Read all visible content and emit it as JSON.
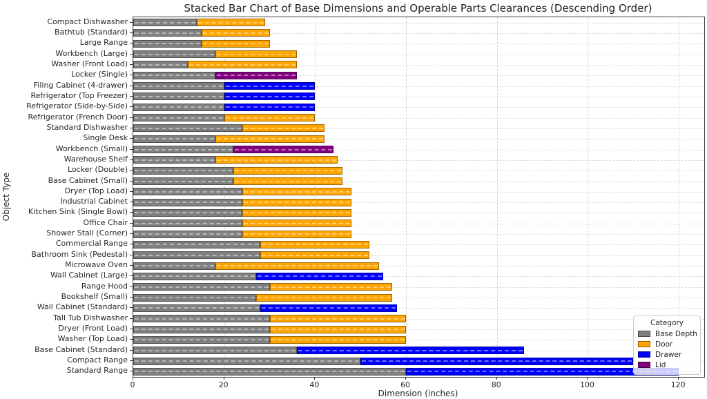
{
  "chart_data": {
    "type": "bar",
    "orientation": "horizontal",
    "stacked": true,
    "title": "Stacked Bar Chart of Base Dimensions and Operable Parts Clearances (Descending Order)",
    "xlabel": "Dimension (inches)",
    "ylabel": "Object Type",
    "xlim": [
      0,
      125.6
    ],
    "x_ticks": [
      0,
      20,
      40,
      60,
      80,
      100,
      120
    ],
    "grid": "both-axes dashed light gray",
    "legend": {
      "title": "Category",
      "position": "lower right",
      "entries": [
        {
          "label": "Base Depth",
          "color_key": "base"
        },
        {
          "label": "Door",
          "color_key": "door"
        },
        {
          "label": "Drawer",
          "color_key": "drawer"
        },
        {
          "label": "Lid",
          "color_key": "lid"
        }
      ]
    },
    "colors": {
      "base": "#808080",
      "door": "#FFA500",
      "drawer": "#0000FF",
      "lid": "#800080"
    },
    "bars": [
      {
        "label": "Compact Dishwasher",
        "base_depth": 14,
        "clearance": 15,
        "clearance_type": "door"
      },
      {
        "label": "Bathtub (Standard)",
        "base_depth": 15,
        "clearance": 15,
        "clearance_type": "door"
      },
      {
        "label": "Large Range",
        "base_depth": 15,
        "clearance": 15,
        "clearance_type": "door"
      },
      {
        "label": "Workbench (Large)",
        "base_depth": 18,
        "clearance": 18,
        "clearance_type": "door"
      },
      {
        "label": "Washer (Front Load)",
        "base_depth": 12,
        "clearance": 24,
        "clearance_type": "door"
      },
      {
        "label": "Locker (Single)",
        "base_depth": 18,
        "clearance": 18,
        "clearance_type": "lid"
      },
      {
        "label": "Filing Cabinet (4-drawer)",
        "base_depth": 20,
        "clearance": 20,
        "clearance_type": "drawer"
      },
      {
        "label": "Refrigerator (Top Freezer)",
        "base_depth": 20,
        "clearance": 20,
        "clearance_type": "drawer"
      },
      {
        "label": "Refrigerator (Side-by-Side)",
        "base_depth": 20,
        "clearance": 20,
        "clearance_type": "drawer"
      },
      {
        "label": "Refrigerator (French Door)",
        "base_depth": 20,
        "clearance": 20,
        "clearance_type": "door"
      },
      {
        "label": "Standard Dishwasher",
        "base_depth": 24,
        "clearance": 18,
        "clearance_type": "door"
      },
      {
        "label": "Single Desk",
        "base_depth": 18,
        "clearance": 24,
        "clearance_type": "door"
      },
      {
        "label": "Workbench (Small)",
        "base_depth": 22,
        "clearance": 22,
        "clearance_type": "lid"
      },
      {
        "label": "Warehouse Shelf",
        "base_depth": 18,
        "clearance": 27,
        "clearance_type": "door"
      },
      {
        "label": "Locker (Double)",
        "base_depth": 22,
        "clearance": 24,
        "clearance_type": "door"
      },
      {
        "label": "Base Cabinet (Small)",
        "base_depth": 22,
        "clearance": 24,
        "clearance_type": "door"
      },
      {
        "label": "Dryer (Top Load)",
        "base_depth": 24,
        "clearance": 24,
        "clearance_type": "door"
      },
      {
        "label": "Industrial Cabinet",
        "base_depth": 24,
        "clearance": 24,
        "clearance_type": "door"
      },
      {
        "label": "Kitchen Sink (Single Bowl)",
        "base_depth": 24,
        "clearance": 24,
        "clearance_type": "door"
      },
      {
        "label": "Office Chair",
        "base_depth": 24,
        "clearance": 24,
        "clearance_type": "door"
      },
      {
        "label": "Shower Stall (Corner)",
        "base_depth": 24,
        "clearance": 24,
        "clearance_type": "door"
      },
      {
        "label": "Commercial Range",
        "base_depth": 28,
        "clearance": 24,
        "clearance_type": "door"
      },
      {
        "label": "Bathroom Sink (Pedestal)",
        "base_depth": 28,
        "clearance": 24,
        "clearance_type": "door"
      },
      {
        "label": "Microwave Oven",
        "base_depth": 18,
        "clearance": 36,
        "clearance_type": "door"
      },
      {
        "label": "Wall Cabinet (Large)",
        "base_depth": 27,
        "clearance": 28,
        "clearance_type": "drawer"
      },
      {
        "label": "Range Hood",
        "base_depth": 30,
        "clearance": 27,
        "clearance_type": "door"
      },
      {
        "label": "Bookshelf (Small)",
        "base_depth": 27,
        "clearance": 30,
        "clearance_type": "door"
      },
      {
        "label": "Wall Cabinet (Standard)",
        "base_depth": 28,
        "clearance": 30,
        "clearance_type": "drawer"
      },
      {
        "label": "Tall Tub Dishwasher",
        "base_depth": 30,
        "clearance": 30,
        "clearance_type": "door"
      },
      {
        "label": "Dryer (Front Load)",
        "base_depth": 30,
        "clearance": 30,
        "clearance_type": "door"
      },
      {
        "label": "Washer (Top Load)",
        "base_depth": 30,
        "clearance": 30,
        "clearance_type": "door"
      },
      {
        "label": "Base Cabinet (Standard)",
        "base_depth": 36,
        "clearance": 50,
        "clearance_type": "drawer"
      },
      {
        "label": "Compact Range",
        "base_depth": 50,
        "clearance": 60,
        "clearance_type": "drawer"
      },
      {
        "label": "Standard Range",
        "base_depth": 60,
        "clearance": 60,
        "clearance_type": "drawer"
      }
    ]
  }
}
